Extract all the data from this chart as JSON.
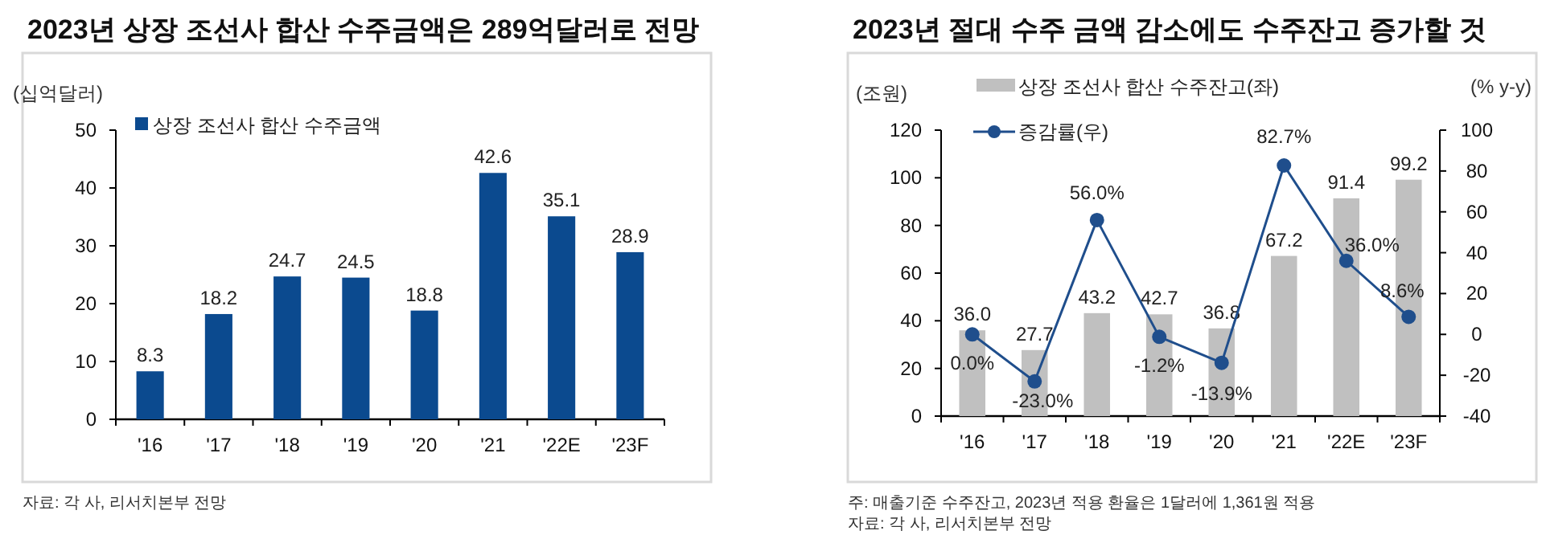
{
  "chart_data": [
    {
      "type": "bar",
      "title": "2023년 상장 조선사 합산 수주금액은 289억달러로 전망",
      "ylabel": "(십억달러)",
      "categories": [
        "'16",
        "'17",
        "'18",
        "'19",
        "'20",
        "'21",
        "'22E",
        "'23F"
      ],
      "series": [
        {
          "name": "상장 조선사 합산 수주금액",
          "color": "#0b4a8f",
          "values": [
            8.3,
            18.2,
            24.7,
            24.5,
            18.8,
            42.6,
            35.1,
            28.9
          ]
        }
      ],
      "ylim": [
        0,
        50
      ],
      "yticks": [
        0,
        10,
        20,
        30,
        40,
        50
      ],
      "data_labels": true,
      "legend": "top left",
      "grid": false,
      "annotations": [
        "자료: 각 사, 리서치본부 전망"
      ]
    },
    {
      "type": "bar",
      "title": "2023년 절대 수주 금액 감소에도 수주잔고 증가할 것",
      "ylabel": "(조원)",
      "y2label": "(% y-y)",
      "categories": [
        "'16",
        "'17",
        "'18",
        "'19",
        "'20",
        "'21",
        "'22E",
        "'23F"
      ],
      "series": [
        {
          "name": "상장 조선사 합산 수주잔고(좌)",
          "color": "#c0c0c0",
          "values": [
            36.0,
            27.7,
            43.2,
            42.7,
            36.8,
            67.2,
            91.4,
            99.2
          ],
          "value_labels": [
            "36.0",
            "27.7",
            "43.2",
            "42.7",
            "36.8",
            "67.2",
            "91.4",
            "99.2"
          ]
        },
        {
          "name": "증감률(우)",
          "type": "line",
          "axis": "y2",
          "color": "#1f4e8c",
          "marker": "circle",
          "values": [
            0.0,
            -23.0,
            56.0,
            -1.2,
            -13.9,
            82.7,
            36.0,
            8.6
          ],
          "value_labels": [
            "0.0%",
            "-23.0%",
            "56.0%",
            "-1.2%",
            "-13.9%",
            "82.7%",
            "36.0%",
            "8.6%"
          ]
        }
      ],
      "ylim": [
        0,
        120
      ],
      "yticks": [
        0,
        20,
        40,
        60,
        80,
        100,
        120
      ],
      "y2lim": [
        -40,
        100
      ],
      "y2ticks": [
        -40,
        -20,
        0,
        20,
        40,
        60,
        80,
        100
      ],
      "legend": "top left",
      "grid": false,
      "annotations": [
        "주: 매출기준 수주잔고, 2023년 적용 환율은 1달러에 1,361원 적용",
        "자료: 각 사, 리서치본부 전망"
      ]
    }
  ]
}
